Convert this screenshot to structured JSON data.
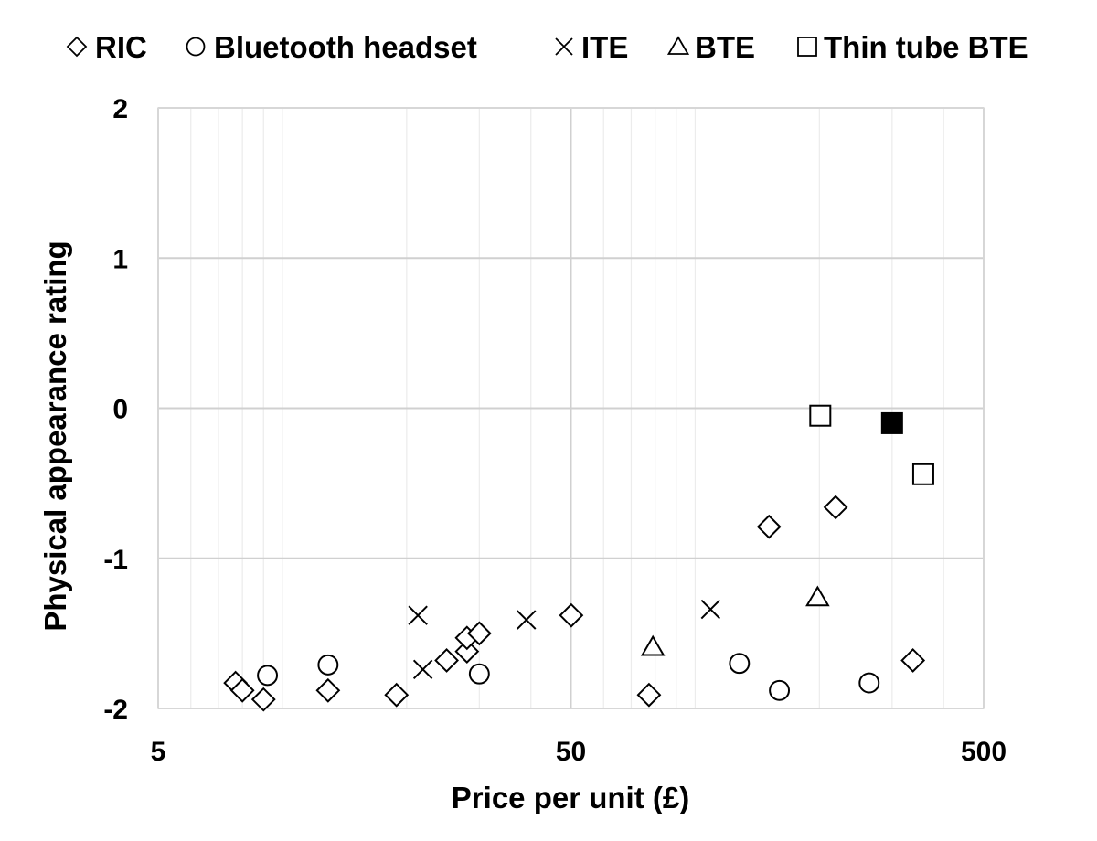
{
  "chart_data": {
    "type": "scatter",
    "xlabel": "Price per unit (£)",
    "ylabel": "Physical appearance rating",
    "xscale": "log",
    "xlim": [
      5,
      500
    ],
    "ylim": [
      -2,
      2
    ],
    "xticks": [
      5,
      50,
      500
    ],
    "xtick_labels": [
      "5",
      "50",
      "500"
    ],
    "yticks": [
      2,
      1,
      0,
      -1,
      -2
    ],
    "ytick_labels": [
      "2",
      "1",
      "0",
      "-1",
      "-2"
    ],
    "grid": true,
    "legend_position": "top",
    "series": [
      {
        "name": "RIC",
        "marker": "diamond",
        "points": [
          [
            7.7,
            -1.83
          ],
          [
            8.0,
            -1.88
          ],
          [
            9.0,
            -1.94
          ],
          [
            12.9,
            -1.88
          ],
          [
            18.9,
            -1.91
          ],
          [
            25.0,
            -1.68
          ],
          [
            28.0,
            -1.62
          ],
          [
            28.0,
            -1.53
          ],
          [
            30.0,
            -1.5
          ],
          [
            50.1,
            -1.38
          ],
          [
            77.3,
            -1.91
          ],
          [
            151,
            -0.79
          ],
          [
            219,
            -0.66
          ],
          [
            337,
            -1.68
          ]
        ]
      },
      {
        "name": "Bluetooth headset",
        "marker": "circle",
        "points": [
          [
            9.2,
            -1.78
          ],
          [
            12.9,
            -1.71
          ],
          [
            30.0,
            -1.77
          ],
          [
            128,
            -1.7
          ],
          [
            160,
            -1.88
          ],
          [
            264,
            -1.83
          ]
        ]
      },
      {
        "name": "ITE",
        "marker": "x",
        "points": [
          [
            21.3,
            -1.38
          ],
          [
            21.9,
            -1.74
          ],
          [
            39,
            -1.41
          ],
          [
            109,
            -1.34
          ]
        ]
      },
      {
        "name": "BTE",
        "marker": "triangle",
        "points": [
          [
            79,
            -1.59
          ],
          [
            198,
            -1.26
          ]
        ]
      },
      {
        "name": "Thin tube BTE",
        "marker": "square",
        "points": [
          [
            201,
            -0.05
          ],
          [
            357,
            -0.44
          ]
        ]
      }
    ],
    "highlighted_point": {
      "series": "Thin tube BTE",
      "x": 300,
      "y": -0.1,
      "fill": "#000000"
    }
  }
}
